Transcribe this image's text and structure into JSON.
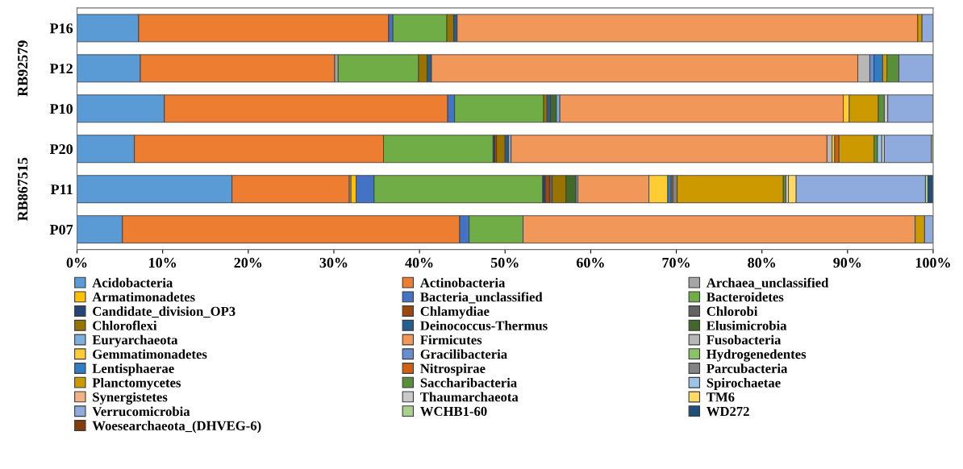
{
  "chart_data": {
    "type": "bar",
    "orientation": "horizontal",
    "stacked": true,
    "categories": [
      "P16",
      "P12",
      "P10",
      "P20",
      "P11",
      "P07"
    ],
    "annotations": [
      "RB92579",
      "RB867515"
    ],
    "xlim": [
      0,
      100
    ],
    "xticks": [
      {
        "value": 0,
        "label": "0%"
      },
      {
        "value": 10,
        "label": "10%"
      },
      {
        "value": 20,
        "label": "20%"
      },
      {
        "value": 30,
        "label": "30%"
      },
      {
        "value": 40,
        "label": "40%"
      },
      {
        "value": 50,
        "label": "50%"
      },
      {
        "value": 60,
        "label": "60%"
      },
      {
        "value": 70,
        "label": "70%"
      },
      {
        "value": 80,
        "label": "80%"
      },
      {
        "value": 90,
        "label": "90%"
      },
      {
        "value": 100,
        "label": "100%"
      }
    ],
    "grid": false,
    "legend": "bottom",
    "series": [
      {
        "name": "Acidobacteria",
        "color": "#5b9bd5",
        "values": [
          7.2,
          7.4,
          10.2,
          6.7,
          18.1,
          5.3
        ]
      },
      {
        "name": "Actinobacteria",
        "color": "#ed7d31",
        "values": [
          29.2,
          22.7,
          33.1,
          29.1,
          13.7,
          39.4
        ]
      },
      {
        "name": "Archaea_unclassified",
        "color": "#a5a5a5",
        "values": [
          0,
          0.4,
          0,
          0,
          0.2,
          0
        ]
      },
      {
        "name": "Armatimonadetes",
        "color": "#ffc000",
        "values": [
          0,
          0,
          0,
          0,
          0.6,
          0
        ]
      },
      {
        "name": "Bacteria_unclassified",
        "color": "#4472c4",
        "values": [
          0.5,
          0,
          0.8,
          0,
          2.1,
          1.1
        ]
      },
      {
        "name": "Bacteroidetes",
        "color": "#70ad47",
        "values": [
          6.3,
          9.4,
          10.4,
          12.8,
          19.7,
          6.3
        ]
      },
      {
        "name": "Candidate_division_OP3",
        "color": "#264478",
        "values": [
          0,
          0,
          0,
          0.2,
          0.3,
          0
        ]
      },
      {
        "name": "Chlamydiae",
        "color": "#9e480e",
        "values": [
          0,
          0,
          0,
          0.2,
          0.5,
          0
        ]
      },
      {
        "name": "Chlorobi",
        "color": "#636363",
        "values": [
          0,
          0,
          0,
          0,
          0.3,
          0
        ]
      },
      {
        "name": "Chloroflexi",
        "color": "#997300",
        "values": [
          0.8,
          1.0,
          0.4,
          1.0,
          1.6,
          0
        ]
      },
      {
        "name": "Deinococcus-Thermus",
        "color": "#255e91",
        "values": [
          0.4,
          0.5,
          0.4,
          0.4,
          0,
          0
        ]
      },
      {
        "name": "Elusimicrobia",
        "color": "#43682b",
        "values": [
          0,
          0,
          0.7,
          0,
          1.2,
          0
        ]
      },
      {
        "name": "Euryarchaeota",
        "color": "#7cafdd",
        "values": [
          0,
          0,
          0.4,
          0.3,
          0.2,
          0
        ]
      },
      {
        "name": "Firmicutes",
        "color": "#f1975a",
        "values": [
          53.8,
          49.8,
          33.1,
          36.9,
          8.3,
          45.8
        ]
      },
      {
        "name": "Fusobacteria",
        "color": "#b7b7b7",
        "values": [
          0,
          1.4,
          0,
          0.6,
          0,
          0
        ]
      },
      {
        "name": "Gemmatimonadetes",
        "color": "#ffcd33",
        "values": [
          0,
          0,
          0.7,
          0.3,
          2.2,
          0
        ]
      },
      {
        "name": "Gracilibacteria",
        "color": "#698ed0",
        "values": [
          0,
          0.5,
          0,
          0,
          0,
          0
        ]
      },
      {
        "name": "Hydrogenedentes",
        "color": "#8cc168",
        "values": [
          0,
          0,
          0,
          0,
          0,
          0
        ]
      },
      {
        "name": "Lentisphaerae",
        "color": "#327dc2",
        "values": [
          0,
          1.0,
          0,
          0,
          0.4,
          0
        ]
      },
      {
        "name": "Nitrospirae",
        "color": "#d26012",
        "values": [
          0,
          0,
          0,
          0.5,
          0.2,
          0
        ]
      },
      {
        "name": "Parcubacteria",
        "color": "#848484",
        "values": [
          0,
          0,
          0,
          0,
          0.5,
          0
        ]
      },
      {
        "name": "Planctomycetes",
        "color": "#cc9a00",
        "values": [
          0.5,
          0.5,
          3.4,
          4.1,
          12.4,
          1.1
        ]
      },
      {
        "name": "Saccharibacteria",
        "color": "#5a8f3a",
        "values": [
          0,
          1.4,
          0.7,
          0.4,
          0.3,
          0
        ]
      },
      {
        "name": "Spirochaetae",
        "color": "#9dc3e6",
        "values": [
          0,
          0,
          0,
          0.5,
          0,
          0
        ]
      },
      {
        "name": "Synergistetes",
        "color": "#f4b183",
        "values": [
          0,
          0,
          0,
          0,
          0,
          0
        ]
      },
      {
        "name": "Thaumarchaeota",
        "color": "#c9c9c9",
        "values": [
          0,
          0,
          0.4,
          0.3,
          0.3,
          0
        ]
      },
      {
        "name": "TM6",
        "color": "#ffd966",
        "values": [
          0,
          0,
          0,
          0,
          0.9,
          0
        ]
      },
      {
        "name": "Verrucomicrobia",
        "color": "#8faadc",
        "values": [
          1.3,
          4.0,
          5.3,
          5.5,
          15.1,
          1.0
        ]
      },
      {
        "name": "WCHB1-60",
        "color": "#a9d18e",
        "values": [
          0,
          0,
          0,
          0.2,
          0.3,
          0
        ]
      },
      {
        "name": "WD272",
        "color": "#1f4e79",
        "values": [
          0,
          0,
          0,
          0,
          0.6,
          0
        ]
      },
      {
        "name": "Woesearchaeota_(DHVEG-6)",
        "color": "#843c0c",
        "values": [
          0,
          0,
          0,
          0,
          0,
          0
        ]
      }
    ]
  }
}
